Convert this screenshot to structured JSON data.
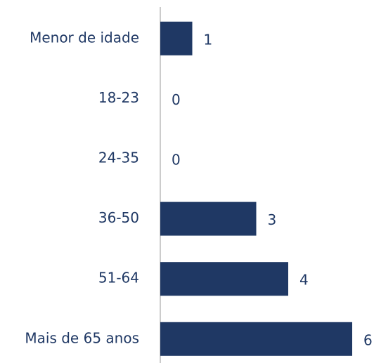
{
  "chart_data": {
    "type": "hbar",
    "categories": [
      "Menor de idade",
      "18-23",
      "24-35",
      "36-50",
      "51-64",
      "Mais de 65 anos"
    ],
    "values": [
      1,
      0,
      0,
      3,
      4,
      6
    ],
    "color": "#1f3864"
  }
}
